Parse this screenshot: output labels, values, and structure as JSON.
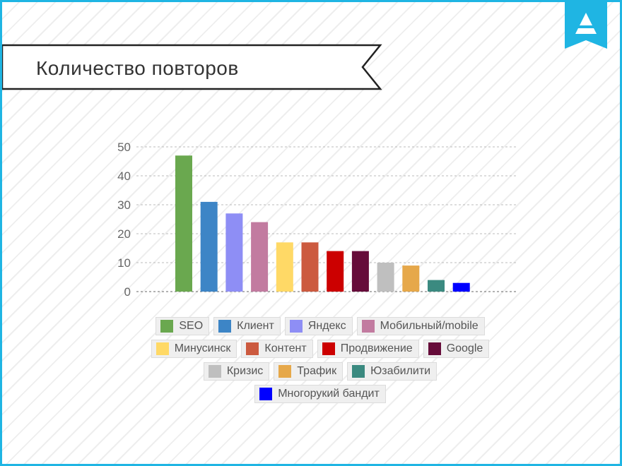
{
  "page": {
    "title": "Количество повторов",
    "accent_color": "#1fb5e3",
    "logo_icon": "a-triangle-bookmark-icon"
  },
  "chart_data": {
    "type": "bar",
    "title": "",
    "xlabel": "",
    "ylabel": "",
    "ylim": [
      0,
      50
    ],
    "yticks": [
      0,
      10,
      20,
      30,
      40,
      50
    ],
    "grid": true,
    "legend_position": "bottom",
    "categories": [
      "SEO",
      "Клиент",
      "Яндекс",
      "Мобильный/mobile",
      "Минусинск",
      "Контент",
      "Продвижение",
      "Google",
      "Кризис",
      "Трафик",
      "Юзабилити",
      "Многорукий бандит"
    ],
    "values": [
      47,
      31,
      27,
      24,
      17,
      17,
      14,
      14,
      10,
      9,
      4,
      3
    ],
    "colors": [
      "#6aa84f",
      "#3d85c6",
      "#8e8ef5",
      "#c27ba0",
      "#ffd966",
      "#cc5a3f",
      "#cc0000",
      "#660c3a",
      "#bfbfbf",
      "#e6a84a",
      "#3b8a80",
      "#0000ff"
    ]
  },
  "legend": {
    "rows": [
      [
        {
          "label": "SEO",
          "color": "#6aa84f"
        },
        {
          "label": "Клиент",
          "color": "#3d85c6"
        },
        {
          "label": "Яндекс",
          "color": "#8e8ef5"
        },
        {
          "label": "Мобильный/mobile",
          "color": "#c27ba0"
        }
      ],
      [
        {
          "label": "Минусинск",
          "color": "#ffd966"
        },
        {
          "label": "Контент",
          "color": "#cc5a3f"
        },
        {
          "label": "Продвижение",
          "color": "#cc0000"
        },
        {
          "label": "Google",
          "color": "#660c3a"
        }
      ],
      [
        {
          "label": "Кризис",
          "color": "#bfbfbf"
        },
        {
          "label": "Трафик",
          "color": "#e6a84a"
        },
        {
          "label": "Юзабилити",
          "color": "#3b8a80"
        }
      ],
      [
        {
          "label": "Многорукий бандит",
          "color": "#0000ff"
        }
      ]
    ]
  }
}
